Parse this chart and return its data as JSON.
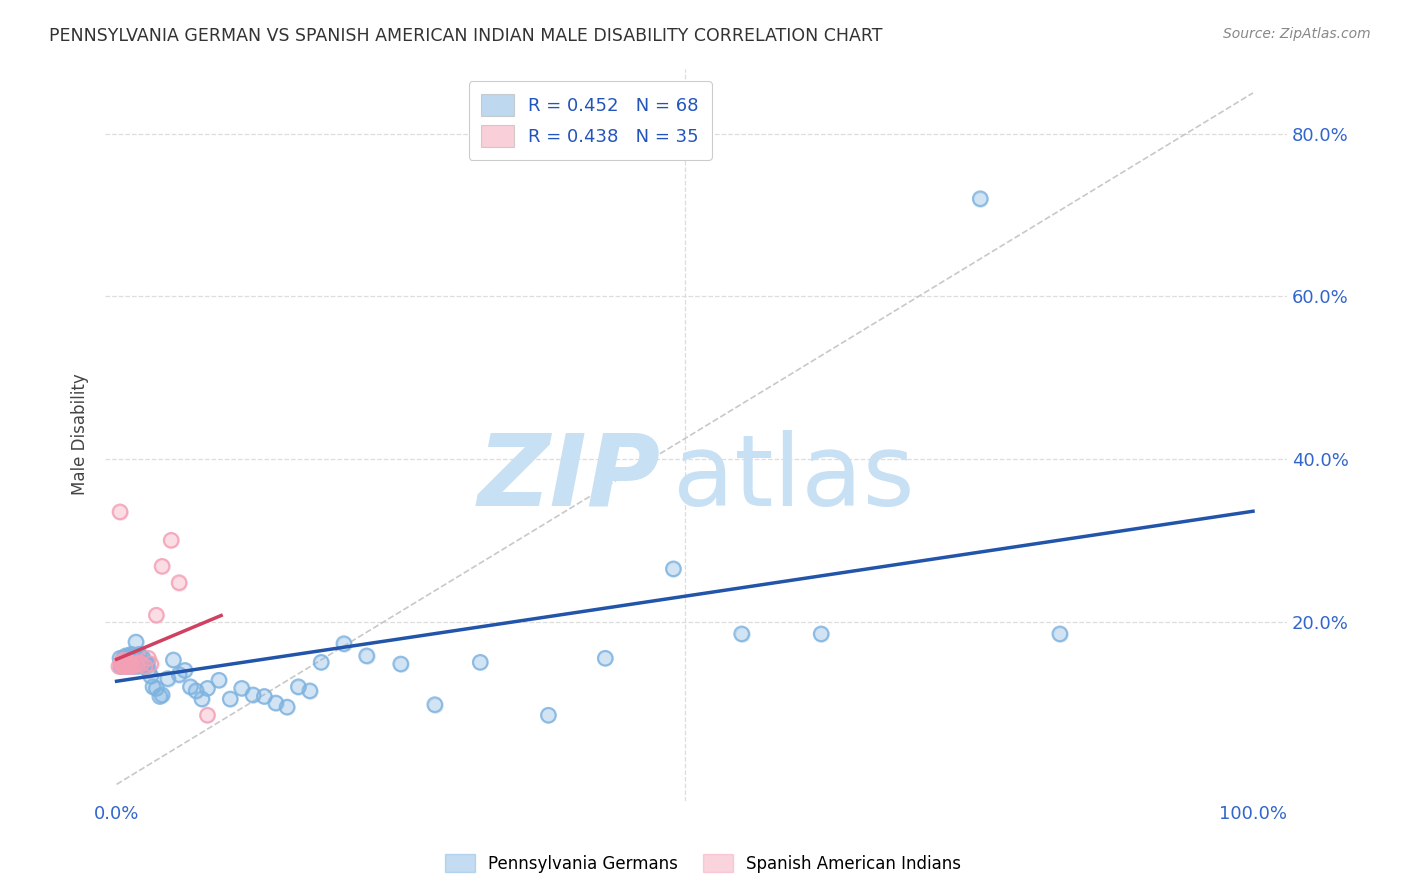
{
  "title": "PENNSYLVANIA GERMAN VS SPANISH AMERICAN INDIAN MALE DISABILITY CORRELATION CHART",
  "source": "Source: ZipAtlas.com",
  "ylabel": "Male Disability",
  "watermark_zip": "ZIP",
  "watermark_atlas": "atlas",
  "xlim": [
    -0.01,
    1.03
  ],
  "ylim": [
    -0.02,
    0.88
  ],
  "ytick_vals": [
    0.2,
    0.4,
    0.6,
    0.8
  ],
  "ytick_labels": [
    "20.0%",
    "40.0%",
    "60.0%",
    "80.0%"
  ],
  "xtick_vals": [
    0.0,
    1.0
  ],
  "xtick_labels": [
    "0.0%",
    "100.0%"
  ],
  "legend_label1": "R = 0.452   N = 68",
  "legend_label2": "R = 0.438   N = 35",
  "blue_color": "#7EB3E0",
  "pink_color": "#F4A0B5",
  "blue_line_color": "#2255AA",
  "pink_line_color": "#D04060",
  "diag_color": "#BBBBBB",
  "tick_color": "#3366CC",
  "r_label_color": "#2255BB",
  "background": "#FFFFFF",
  "legend_entry1": "Pennsylvania Germans",
  "legend_entry2": "Spanish American Indians",
  "blue_x": [
    0.003,
    0.004,
    0.005,
    0.006,
    0.007,
    0.007,
    0.008,
    0.008,
    0.009,
    0.01,
    0.01,
    0.011,
    0.011,
    0.012,
    0.012,
    0.013,
    0.013,
    0.014,
    0.015,
    0.015,
    0.016,
    0.017,
    0.018,
    0.019,
    0.02,
    0.021,
    0.022,
    0.023,
    0.024,
    0.025,
    0.026,
    0.027,
    0.028,
    0.03,
    0.032,
    0.035,
    0.038,
    0.04,
    0.045,
    0.05,
    0.055,
    0.06,
    0.065,
    0.07,
    0.075,
    0.08,
    0.09,
    0.1,
    0.11,
    0.12,
    0.13,
    0.14,
    0.15,
    0.16,
    0.17,
    0.18,
    0.2,
    0.22,
    0.25,
    0.28,
    0.32,
    0.38,
    0.43,
    0.49,
    0.55,
    0.62,
    0.76,
    0.83
  ],
  "blue_y": [
    0.155,
    0.145,
    0.15,
    0.155,
    0.148,
    0.153,
    0.152,
    0.158,
    0.15,
    0.145,
    0.158,
    0.148,
    0.155,
    0.15,
    0.153,
    0.148,
    0.16,
    0.148,
    0.145,
    0.155,
    0.15,
    0.175,
    0.155,
    0.145,
    0.16,
    0.148,
    0.148,
    0.155,
    0.148,
    0.145,
    0.148,
    0.148,
    0.14,
    0.133,
    0.12,
    0.118,
    0.108,
    0.11,
    0.13,
    0.153,
    0.135,
    0.14,
    0.12,
    0.115,
    0.105,
    0.118,
    0.128,
    0.105,
    0.118,
    0.11,
    0.108,
    0.1,
    0.095,
    0.12,
    0.115,
    0.15,
    0.173,
    0.158,
    0.148,
    0.098,
    0.15,
    0.085,
    0.155,
    0.265,
    0.185,
    0.185,
    0.72,
    0.185
  ],
  "pink_x": [
    0.002,
    0.003,
    0.004,
    0.004,
    0.005,
    0.005,
    0.006,
    0.006,
    0.007,
    0.007,
    0.008,
    0.008,
    0.009,
    0.009,
    0.01,
    0.01,
    0.011,
    0.011,
    0.012,
    0.012,
    0.013,
    0.014,
    0.015,
    0.016,
    0.018,
    0.02,
    0.022,
    0.025,
    0.028,
    0.03,
    0.035,
    0.04,
    0.048,
    0.055,
    0.08
  ],
  "pink_y": [
    0.145,
    0.335,
    0.148,
    0.15,
    0.145,
    0.148,
    0.15,
    0.153,
    0.148,
    0.145,
    0.148,
    0.15,
    0.148,
    0.145,
    0.15,
    0.148,
    0.145,
    0.148,
    0.15,
    0.148,
    0.145,
    0.148,
    0.145,
    0.148,
    0.148,
    0.15,
    0.148,
    0.145,
    0.155,
    0.148,
    0.208,
    0.268,
    0.3,
    0.248,
    0.085
  ]
}
